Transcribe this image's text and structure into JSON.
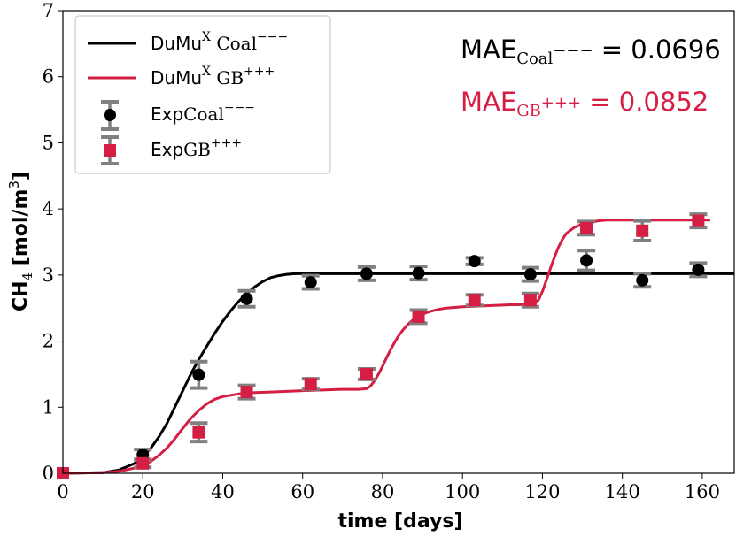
{
  "chart_data": {
    "type": "line",
    "xlabel": "time [days]",
    "ylabel": {
      "main": "CH",
      "sub": "4",
      "unit": " [mol/m",
      "sup": "3",
      "close": "]"
    },
    "xlim": [
      0,
      168
    ],
    "ylim": [
      0,
      7
    ],
    "xticks": [
      0,
      20,
      40,
      60,
      80,
      100,
      120,
      140,
      160
    ],
    "yticks": [
      0,
      1,
      2,
      3,
      4,
      5,
      6,
      7
    ],
    "grid": false,
    "legend_position": "top-left",
    "series": [
      {
        "name": {
          "base": "DuMu",
          "sup": "X",
          "label": " Coal",
          "label_sup": "−−−"
        },
        "kind": "line",
        "color": "#000000",
        "x": [
          0,
          10,
          14,
          18,
          20,
          22,
          24,
          26,
          28,
          30,
          32,
          34,
          36,
          38,
          40,
          42,
          44,
          46,
          48,
          50,
          52,
          54,
          56,
          58,
          60,
          62,
          66,
          70,
          168
        ],
        "y": [
          0,
          0.01,
          0.05,
          0.15,
          0.25,
          0.38,
          0.55,
          0.75,
          1.0,
          1.25,
          1.5,
          1.72,
          1.92,
          2.12,
          2.3,
          2.46,
          2.6,
          2.72,
          2.82,
          2.9,
          2.96,
          2.99,
          3.01,
          3.02,
          3.02,
          3.02,
          3.02,
          3.02,
          3.02
        ]
      },
      {
        "name": {
          "base": "DuMu",
          "sup": "X",
          "label": " GB",
          "label_sup": "+++"
        },
        "kind": "line",
        "color": "#d51e44",
        "x": [
          0,
          10,
          14,
          18,
          20,
          22,
          24,
          26,
          28,
          30,
          32,
          34,
          36,
          38,
          40,
          44,
          48,
          52,
          56,
          60,
          65,
          70,
          74,
          76,
          77,
          78,
          79,
          80,
          81,
          82,
          83,
          84,
          85,
          86,
          87,
          88,
          89,
          90,
          92,
          94,
          96,
          98,
          100,
          104,
          108,
          112,
          116,
          118,
          119,
          120,
          121,
          122,
          123,
          124,
          125,
          126,
          128,
          130,
          132,
          134,
          136,
          138,
          140,
          145,
          150,
          160,
          162
        ],
        "y": [
          0,
          0.01,
          0.03,
          0.08,
          0.12,
          0.18,
          0.27,
          0.38,
          0.52,
          0.68,
          0.83,
          0.95,
          1.05,
          1.12,
          1.16,
          1.2,
          1.22,
          1.23,
          1.24,
          1.25,
          1.26,
          1.27,
          1.27,
          1.28,
          1.32,
          1.4,
          1.5,
          1.62,
          1.75,
          1.87,
          1.98,
          2.08,
          2.16,
          2.23,
          2.29,
          2.34,
          2.38,
          2.41,
          2.45,
          2.48,
          2.5,
          2.51,
          2.52,
          2.53,
          2.54,
          2.55,
          2.55,
          2.57,
          2.62,
          2.75,
          2.92,
          3.1,
          3.27,
          3.42,
          3.54,
          3.63,
          3.72,
          3.77,
          3.8,
          3.82,
          3.83,
          3.83,
          3.83,
          3.83,
          3.83,
          3.83,
          3.83
        ]
      },
      {
        "name": {
          "base": "Exp",
          "label": "Coal",
          "label_sup": "−−−"
        },
        "kind": "errorbar",
        "marker": "circle",
        "color": "#000000",
        "errcolor": "#808080",
        "x": [
          20,
          34,
          46,
          62,
          76,
          89,
          103,
          117,
          131,
          145,
          159
        ],
        "y": [
          0.28,
          1.49,
          2.64,
          2.89,
          3.02,
          3.03,
          3.21,
          3.01,
          3.22,
          2.92,
          3.08
        ],
        "err": [
          0.08,
          0.2,
          0.12,
          0.1,
          0.1,
          0.1,
          0.05,
          0.1,
          0.15,
          0.1,
          0.1
        ]
      },
      {
        "name": {
          "base": "Exp",
          "label": "GB",
          "label_sup": "+++"
        },
        "kind": "errorbar",
        "marker": "square",
        "color": "#d51e44",
        "errcolor": "#808080",
        "x": [
          0,
          20,
          34,
          46,
          62,
          76,
          89,
          103,
          117,
          131,
          145,
          159
        ],
        "y": [
          0,
          0.15,
          0.62,
          1.23,
          1.35,
          1.5,
          2.37,
          2.62,
          2.62,
          3.71,
          3.67,
          3.82
        ],
        "err": [
          0,
          0.06,
          0.14,
          0.1,
          0.08,
          0.08,
          0.1,
          0.08,
          0.1,
          0.1,
          0.15,
          0.1
        ]
      }
    ],
    "annotations": [
      {
        "base": "MAE",
        "sub": "Coal",
        "sub_sup": "−−−",
        "value": " = 0.0696",
        "color": "#000000"
      },
      {
        "base": "MAE",
        "sub": "GB",
        "sub_sup": "+++",
        "value": " = 0.0852",
        "color": "#d51e44"
      }
    ]
  }
}
